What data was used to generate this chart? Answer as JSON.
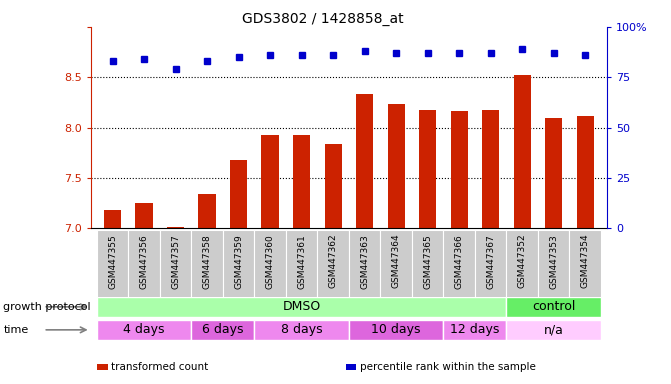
{
  "title": "GDS3802 / 1428858_at",
  "samples": [
    "GSM447355",
    "GSM447356",
    "GSM447357",
    "GSM447358",
    "GSM447359",
    "GSM447360",
    "GSM447361",
    "GSM447362",
    "GSM447363",
    "GSM447364",
    "GSM447365",
    "GSM447366",
    "GSM447367",
    "GSM447352",
    "GSM447353",
    "GSM447354"
  ],
  "transformed_counts": [
    7.18,
    7.25,
    7.01,
    7.34,
    7.68,
    7.93,
    7.93,
    7.84,
    8.33,
    8.23,
    8.18,
    8.17,
    8.18,
    8.52,
    8.1,
    8.12
  ],
  "percentile_ranks": [
    83,
    84,
    79,
    83,
    85,
    86,
    86,
    86,
    88,
    87,
    87,
    87,
    87,
    89,
    87,
    86
  ],
  "bar_color": "#cc2200",
  "dot_color": "#0000cc",
  "ylim_left": [
    7.0,
    9.0
  ],
  "ylim_right": [
    0,
    100
  ],
  "yticks_left": [
    7.0,
    7.5,
    8.0,
    8.5,
    9.0
  ],
  "yticks_right": [
    0,
    25,
    50,
    75,
    100
  ],
  "ytick_labels_right": [
    "0",
    "25",
    "50",
    "75",
    "100%"
  ],
  "grid_values": [
    7.5,
    8.0,
    8.5
  ],
  "growth_protocol_groups": [
    {
      "label": "DMSO",
      "start": 0,
      "end": 13,
      "color": "#aaffaa"
    },
    {
      "label": "control",
      "start": 13,
      "end": 16,
      "color": "#66ee66"
    }
  ],
  "time_groups": [
    {
      "label": "4 days",
      "start": 0,
      "end": 3,
      "color": "#ee88ee"
    },
    {
      "label": "6 days",
      "start": 3,
      "end": 5,
      "color": "#dd66dd"
    },
    {
      "label": "8 days",
      "start": 5,
      "end": 8,
      "color": "#ee88ee"
    },
    {
      "label": "10 days",
      "start": 8,
      "end": 11,
      "color": "#dd66dd"
    },
    {
      "label": "12 days",
      "start": 11,
      "end": 13,
      "color": "#ee88ee"
    },
    {
      "label": "n/a",
      "start": 13,
      "end": 16,
      "color": "#ffccff"
    }
  ],
  "legend_items": [
    {
      "label": "transformed count",
      "color": "#cc2200"
    },
    {
      "label": "percentile rank within the sample",
      "color": "#0000cc"
    }
  ],
  "background_color": "#ffffff",
  "label_growth_protocol": "growth protocol",
  "label_time": "time",
  "tick_bg_color": "#cccccc"
}
